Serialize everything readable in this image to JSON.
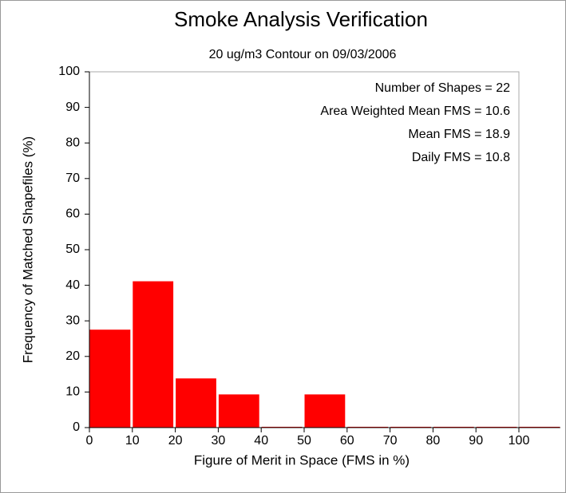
{
  "chart_data": {
    "type": "histogram",
    "title": "Smoke Analysis Verification",
    "subtitle": "20 ug/m3 Contour on 09/03/2006",
    "x_label": "Figure of Merit in Space (FMS in %)",
    "y_label": "Frequency of Matched Shapefiles (%)",
    "annotations": [
      "Number of Shapes = 22",
      "Area Weighted Mean FMS = 10.6",
      "Mean FMS = 18.9",
      "Daily FMS = 10.8"
    ],
    "bins": [
      0,
      10,
      20,
      30,
      40,
      50,
      60,
      70,
      80,
      90,
      100,
      110
    ],
    "values": [
      27.3,
      40.9,
      13.6,
      9.1,
      0,
      9.1,
      0,
      0,
      0,
      0,
      0
    ],
    "color": "#ff0000",
    "xlim": [
      0,
      100
    ],
    "xticks": [
      0,
      10,
      20,
      30,
      40,
      50,
      60,
      70,
      80,
      90,
      100
    ],
    "ylim": [
      0,
      100
    ],
    "yticks": [
      0,
      10,
      20,
      30,
      40,
      50,
      60,
      70,
      80,
      90,
      100
    ]
  }
}
